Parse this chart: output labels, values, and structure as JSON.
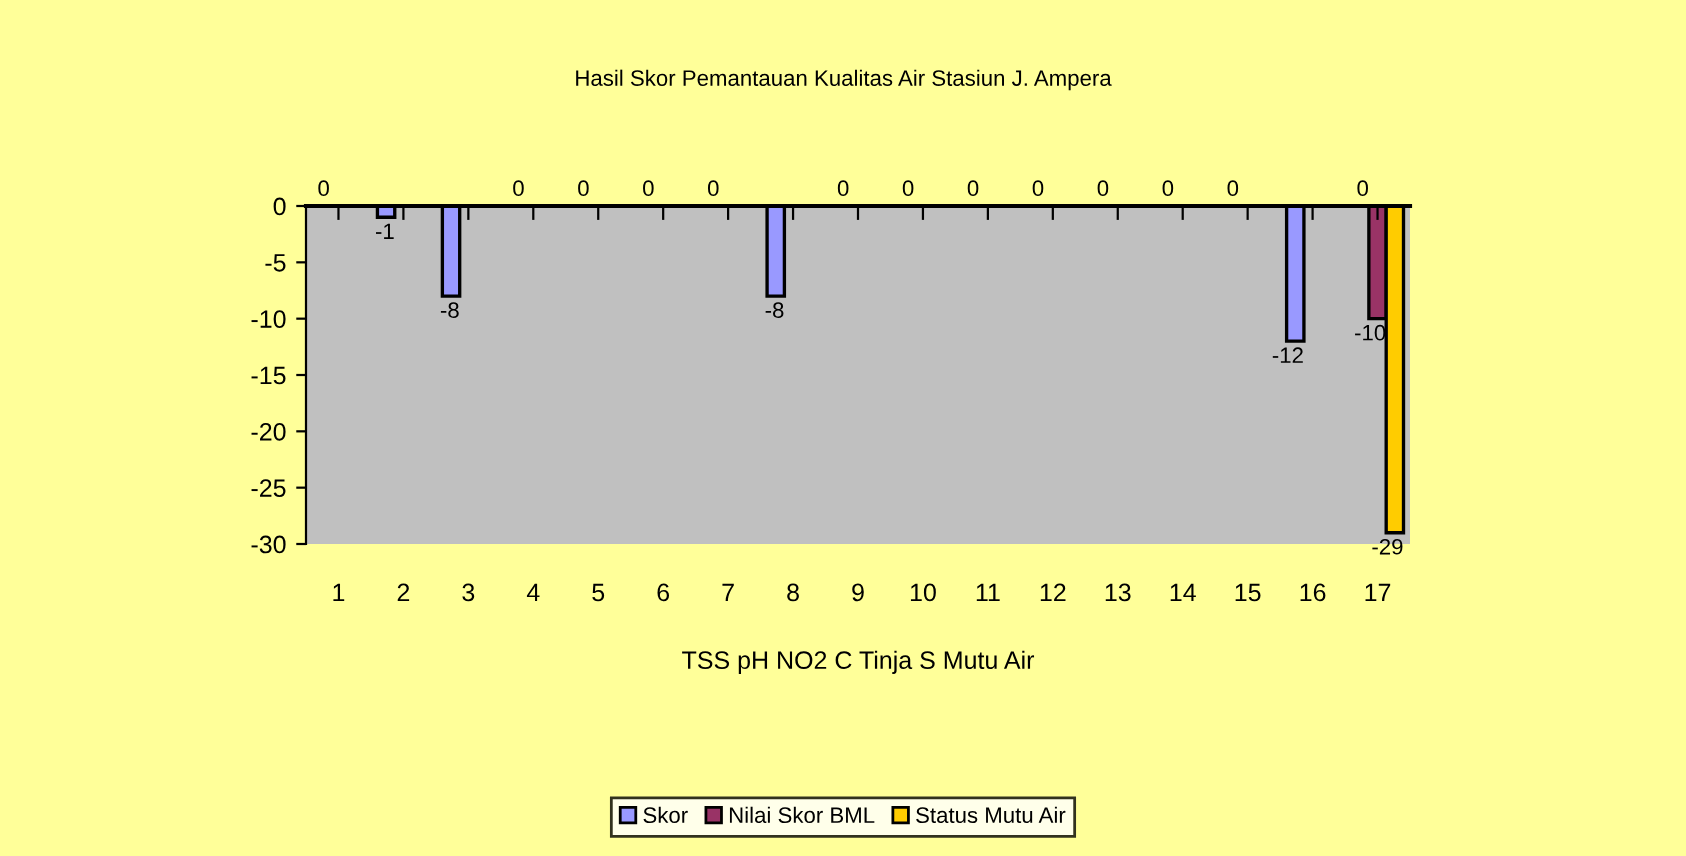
{
  "chart_data": {
    "type": "bar",
    "title": "Hasil Skor Pemantauan Kualitas Air Stasiun J. Ampera",
    "xlabel": "TSS pH NO2 C Tinja S Mutu Air",
    "categories": [
      "1",
      "2",
      "3",
      "4",
      "5",
      "6",
      "7",
      "8",
      "9",
      "10",
      "11",
      "12",
      "13",
      "14",
      "15",
      "16",
      "17"
    ],
    "series": [
      {
        "name": "Skor",
        "color": "#9999ff",
        "values": [
          0,
          -1,
          -8,
          0,
          0,
          0,
          0,
          -8,
          0,
          0,
          0,
          0,
          0,
          0,
          0,
          -12,
          0
        ]
      },
      {
        "name": "Nilai Skor BML",
        "color": "#993366",
        "values": [
          null,
          null,
          null,
          null,
          null,
          null,
          null,
          null,
          null,
          null,
          null,
          null,
          null,
          null,
          null,
          null,
          -10
        ]
      },
      {
        "name": "Status Mutu Air",
        "color": "#ffcc00",
        "values": [
          null,
          null,
          null,
          null,
          null,
          null,
          null,
          null,
          null,
          null,
          null,
          null,
          null,
          null,
          null,
          null,
          -29
        ]
      }
    ],
    "ylim": [
      -30,
      0
    ],
    "yticks": [
      0,
      -5,
      -10,
      -15,
      -20,
      -25,
      -30
    ],
    "data_labels": true,
    "grid": false,
    "legend": "bottom"
  }
}
